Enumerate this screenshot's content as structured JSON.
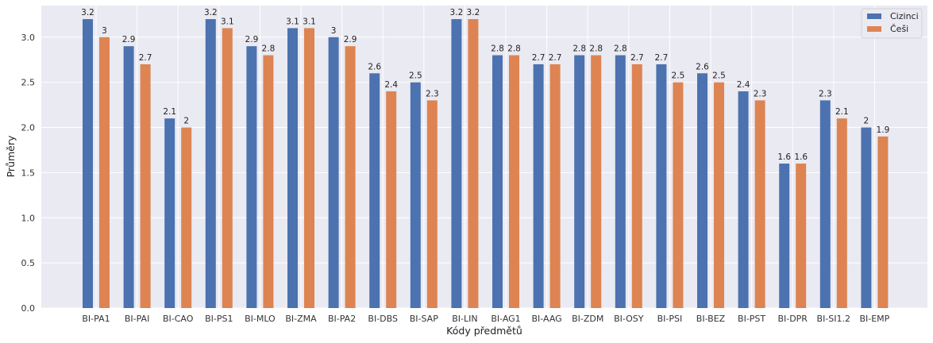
{
  "chart_data": {
    "type": "bar",
    "title": "",
    "xlabel": "Kódy předmětů",
    "ylabel": "Průměry",
    "ylim": [
      0,
      3.35
    ],
    "yticks": [
      "0.0",
      "0.5",
      "1.0",
      "1.5",
      "2.0",
      "2.5",
      "3.0"
    ],
    "grid": true,
    "legend_position": "top-right",
    "categories": [
      "BI-PA1",
      "BI-PAI",
      "BI-CAO",
      "BI-PS1",
      "BI-MLO",
      "BI-ZMA",
      "BI-PA2",
      "BI-DBS",
      "BI-SAP",
      "BI-LIN",
      "BI-AG1",
      "BI-AAG",
      "BI-ZDM",
      "BI-OSY",
      "BI-PSI",
      "BI-BEZ",
      "BI-PST",
      "BI-DPR",
      "BI-SI1.2",
      "BI-EMP"
    ],
    "series": [
      {
        "name": "Cizinci",
        "color": "#4c72b0",
        "values": [
          3.2,
          2.9,
          2.1,
          3.2,
          2.9,
          3.1,
          3.0,
          2.6,
          2.5,
          3.2,
          2.8,
          2.7,
          2.8,
          2.8,
          2.7,
          2.6,
          2.4,
          1.6,
          2.3,
          2.0
        ],
        "labels": [
          "3.2",
          "2.9",
          "2.1",
          "3.2",
          "2.9",
          "3.1",
          "3",
          "2.6",
          "2.5",
          "3.2",
          "2.8",
          "2.7",
          "2.8",
          "2.8",
          "2.7",
          "2.6",
          "2.4",
          "1.6",
          "2.3",
          "2"
        ]
      },
      {
        "name": "Češi",
        "color": "#dd8452",
        "values": [
          3.0,
          2.7,
          2.0,
          3.1,
          2.8,
          3.1,
          2.9,
          2.4,
          2.3,
          3.2,
          2.8,
          2.7,
          2.8,
          2.7,
          2.5,
          2.5,
          2.3,
          1.6,
          2.1,
          1.9
        ],
        "labels": [
          "3",
          "2.7",
          "2",
          "3.1",
          "2.8",
          "3.1",
          "2.9",
          "2.4",
          "2.3",
          "3.2",
          "2.8",
          "2.7",
          "2.8",
          "2.7",
          "2.5",
          "2.5",
          "2.3",
          "1.6",
          "2.1",
          "1.9"
        ]
      }
    ],
    "plot_background": "#eaeaf2",
    "grid_color": "#ffffff"
  }
}
